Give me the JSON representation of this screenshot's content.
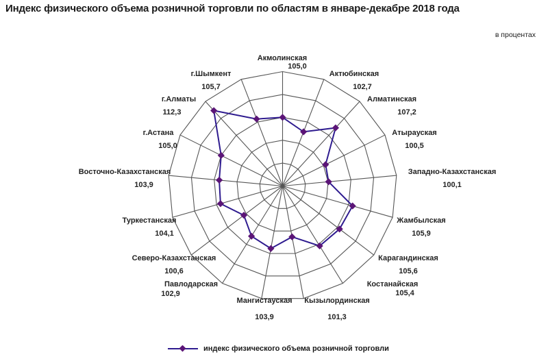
{
  "header": {
    "title": "Индекс физического объема розничной торговли по областям в январе-декабре 2018 года",
    "units": "в процентах"
  },
  "legend": {
    "label": "индекс физического объема розничной торговли"
  },
  "colors": {
    "line": "#2e1b8f",
    "marker": "#5b1577",
    "grid": "#555555"
  },
  "chart_data": {
    "type": "radar",
    "title": "Индекс физического объема розничной торговли по областям в январе-декабре 2018 года",
    "subtitle": "в процентах",
    "categories": [
      "Акмолинская",
      "Актюбинская",
      "Алматинская",
      "Атырауская",
      "Западно-Казахстанская",
      "Жамбылская",
      "Карагандинская",
      "Костанайская",
      "Кызылординская",
      "Мангистауская",
      "Павлодарская",
      "Северо-Казахстанская",
      "Туркестанская",
      "Восточно-Казахстанская",
      "г.Астана",
      "г.Алматы",
      "г.Шымкент"
    ],
    "series": [
      {
        "name": "индекс физического объема розничной торговли",
        "values": [
          105.0,
          102.7,
          107.2,
          100.5,
          100.1,
          105.9,
          105.6,
          105.4,
          101.3,
          103.9,
          102.9,
          100.6,
          104.1,
          103.9,
          105.0,
          112.3,
          105.7
        ]
      }
    ],
    "value_labels": [
      "105,0",
      "102,7",
      "107,2",
      "100,5",
      "100,1",
      "105,9",
      "105,6",
      "105,4",
      "101,3",
      "103,9",
      "102,9",
      "100,6",
      "104,1",
      "103,9",
      "105,0",
      "112,3",
      "105,7"
    ],
    "rlim": [
      90,
      115
    ],
    "r_step": 5,
    "grid": true,
    "legend_position": "bottom"
  }
}
